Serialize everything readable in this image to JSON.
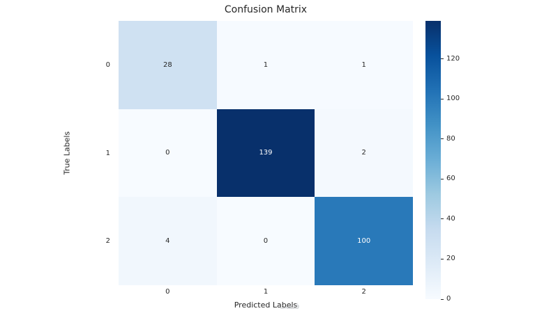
{
  "chart_data": {
    "type": "heatmap",
    "title": "Confusion Matrix",
    "xlabel": "Predicted Labels",
    "ylabel": "True Labels",
    "x_categories": [
      "0",
      "1",
      "2"
    ],
    "y_categories": [
      "0",
      "1",
      "2"
    ],
    "values": [
      [
        28,
        1,
        1
      ],
      [
        0,
        139,
        2
      ],
      [
        4,
        0,
        100
      ]
    ],
    "vmin": 0,
    "vmax": 139,
    "colormap": "Blues",
    "colorbar_ticks": [
      0,
      20,
      40,
      60,
      80,
      100,
      120
    ],
    "legend_position": "right-colorbar",
    "grid": false
  },
  "colors": {
    "cmap_stops": [
      "#f7fbff",
      "#deebf7",
      "#c6dbef",
      "#9ecae1",
      "#6baed6",
      "#4292c6",
      "#2171b5",
      "#08519c",
      "#08306b"
    ],
    "text_dark": "#262626",
    "text_light": "#ffffff",
    "background": "#ffffff"
  },
  "watermark": "فتفت"
}
